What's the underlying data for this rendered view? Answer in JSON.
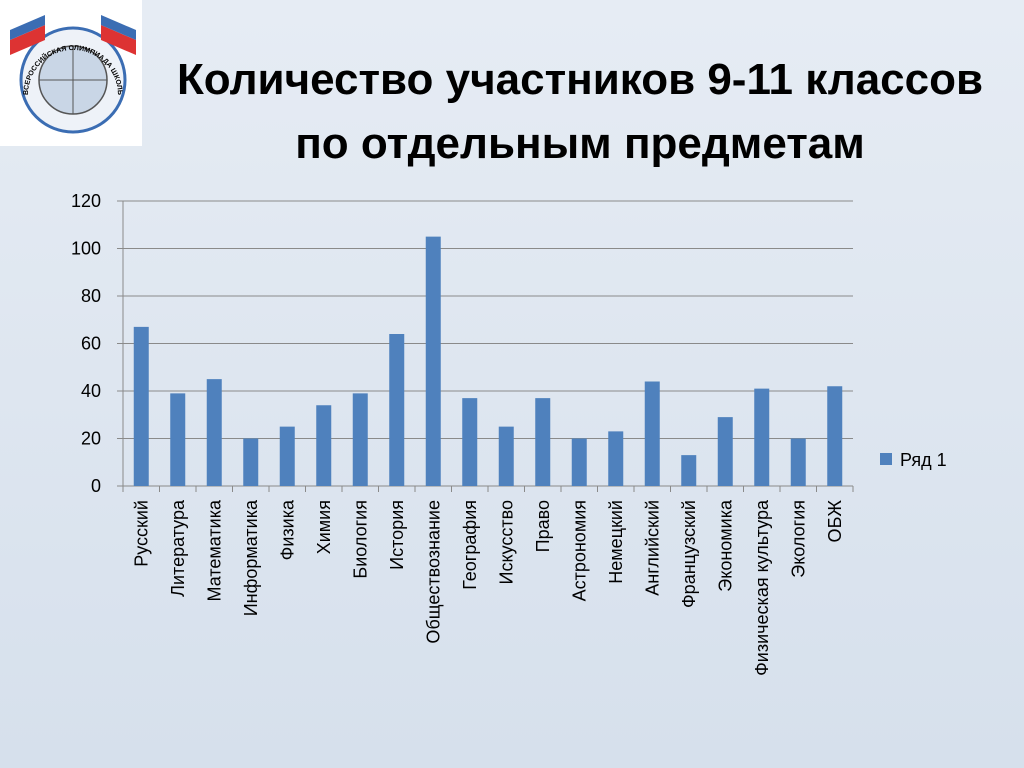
{
  "logo_text": "ВСЕРОССИЙСКАЯ ОЛИМПИАДА ШКОЛЬНИКОВ",
  "chart_data": {
    "type": "bar",
    "title": "Количество участников 9-11 классов по отдельным предметам",
    "categories": [
      "Русский",
      "Литература",
      "Математика",
      "Информатика",
      "Физика",
      "Химия",
      "Биология",
      "История",
      "Обществознание",
      "География",
      "Искусство",
      "Право",
      "Астрономия",
      "Немецкий",
      "Английский",
      "Французский",
      "Экономика",
      "Физическая культура",
      "Экология",
      "ОБЖ"
    ],
    "series": [
      {
        "name": "Ряд 1",
        "color": "#4f81bd",
        "values": [
          67,
          39,
          45,
          20,
          25,
          34,
          39,
          64,
          105,
          37,
          25,
          37,
          20,
          23,
          44,
          13,
          29,
          41,
          20,
          42
        ]
      }
    ],
    "ylim": [
      0,
      120
    ],
    "yticks": [
      0,
      20,
      40,
      60,
      80,
      100,
      120
    ],
    "grid": true,
    "legend": "right"
  }
}
